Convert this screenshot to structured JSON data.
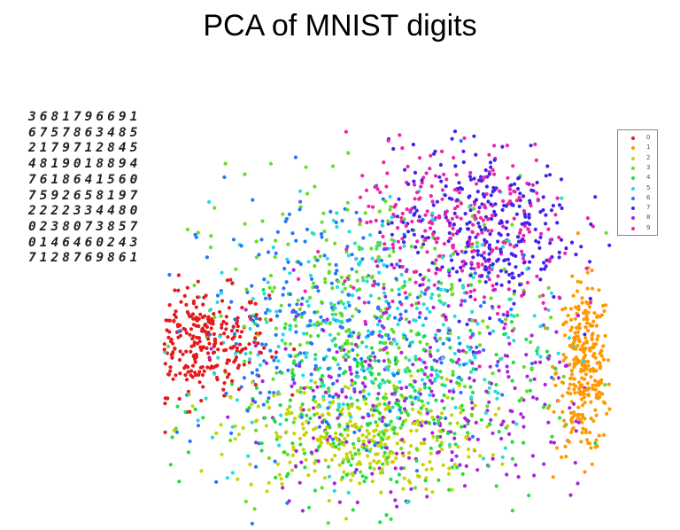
{
  "title": "PCA of MNIST digits",
  "digit_grid_rows": [
    "3681796691",
    "6757863485",
    "2179712845",
    "4819018894",
    "7618641560",
    "7592658197",
    "2222334480",
    "0238073857",
    "0146460243",
    "7128769861"
  ],
  "chart_data": {
    "type": "scatter",
    "title": "",
    "xlabel": "",
    "ylabel": "",
    "grid": false,
    "axes_visible": false,
    "legend_position": "top-right",
    "series": [
      {
        "name": "0",
        "color": "#e41a1c",
        "cluster_center": [
          -0.8,
          -0.05
        ],
        "spread": [
          0.15,
          0.14
        ]
      },
      {
        "name": "1",
        "color": "#ff9900",
        "cluster_center": [
          0.9,
          -0.2
        ],
        "spread": [
          0.06,
          0.22
        ]
      },
      {
        "name": "2",
        "color": "#c8d400",
        "cluster_center": [
          -0.1,
          -0.55
        ],
        "spread": [
          0.28,
          0.15
        ]
      },
      {
        "name": "3",
        "color": "#66dd22",
        "cluster_center": [
          -0.05,
          0.1
        ],
        "spread": [
          0.4,
          0.35
        ]
      },
      {
        "name": "4",
        "color": "#22dd44",
        "cluster_center": [
          0.0,
          -0.4
        ],
        "spread": [
          0.35,
          0.25
        ]
      },
      {
        "name": "5",
        "color": "#22dddd",
        "cluster_center": [
          0.0,
          0.0
        ],
        "spread": [
          0.4,
          0.35
        ]
      },
      {
        "name": "6",
        "color": "#2277ff",
        "cluster_center": [
          -0.2,
          0.05
        ],
        "spread": [
          0.35,
          0.35
        ]
      },
      {
        "name": "7",
        "color": "#4422ee",
        "cluster_center": [
          0.45,
          0.55
        ],
        "spread": [
          0.2,
          0.22
        ]
      },
      {
        "name": "8",
        "color": "#aa22dd",
        "cluster_center": [
          0.2,
          -0.3
        ],
        "spread": [
          0.4,
          0.3
        ]
      },
      {
        "name": "9",
        "color": "#ee22aa",
        "cluster_center": [
          0.35,
          0.5
        ],
        "spread": [
          0.25,
          0.25
        ]
      }
    ]
  }
}
